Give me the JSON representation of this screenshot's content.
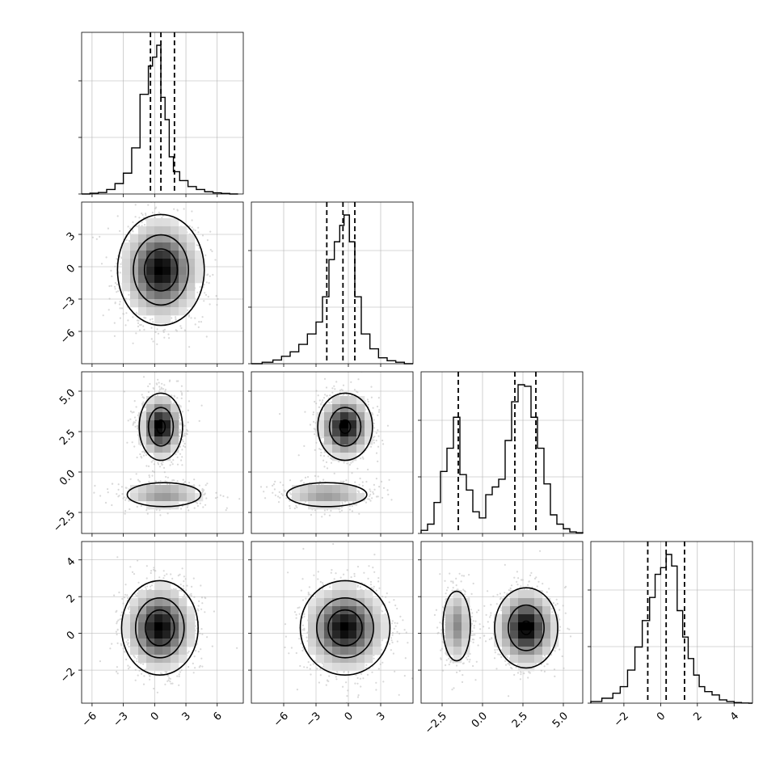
{
  "chart_data": {
    "type": "corner",
    "grid": true,
    "colors": {
      "line": "#000000",
      "grid": "#b0b0b0",
      "points": "#b8b8b8"
    },
    "variables": [
      {
        "range": [
          -7,
          8.5
        ],
        "ticks": [
          -6,
          -3,
          0,
          3,
          6
        ],
        "tick_labels": [
          "−6",
          "−3",
          "0",
          "3",
          "6"
        ],
        "quantiles": [
          -0.4,
          0.6,
          1.9
        ],
        "hist_x": [
          -7,
          -6.2,
          -5.4,
          -4.6,
          -3.8,
          -3,
          -2.2,
          -1.4,
          -0.6,
          -0.2,
          0.2,
          0.6,
          1.0,
          1.4,
          1.8,
          2.4,
          3.2,
          4.0,
          4.8,
          5.6,
          6.4,
          7.2,
          8.0
        ],
        "hist_counts": [
          0,
          0.005,
          0.01,
          0.03,
          0.07,
          0.14,
          0.31,
          0.67,
          0.86,
          0.92,
          1.0,
          0.65,
          0.5,
          0.25,
          0.15,
          0.09,
          0.05,
          0.03,
          0.015,
          0.008,
          0.004,
          0
        ]
      },
      {
        "range": [
          -9,
          6
        ],
        "ticks": [
          -6,
          -3,
          0,
          3
        ],
        "tick_labels": [
          "−6",
          "−3",
          "0",
          "3"
        ],
        "quantiles": [
          -2.0,
          -0.5,
          0.6
        ],
        "hist_x": [
          -9,
          -8,
          -7,
          -6.2,
          -5.4,
          -4.6,
          -3.8,
          -3,
          -2.4,
          -1.8,
          -1.3,
          -0.8,
          -0.4,
          0.1,
          0.6,
          1.2,
          2,
          2.8,
          3.6,
          4.4,
          5.2,
          6
        ],
        "hist_counts": [
          0,
          0.01,
          0.025,
          0.05,
          0.08,
          0.13,
          0.2,
          0.28,
          0.45,
          0.7,
          0.82,
          0.93,
          1.0,
          0.82,
          0.45,
          0.2,
          0.1,
          0.04,
          0.02,
          0.01,
          0
        ]
      },
      {
        "range": [
          -3.8,
          6.2
        ],
        "ticks": [
          -2.5,
          0.0,
          2.5,
          5.0
        ],
        "tick_labels": [
          "−2.5",
          "0.0",
          "2.5",
          "5.0"
        ],
        "quantiles": [
          -1.5,
          2.0,
          3.3
        ],
        "hist_x": [
          -3.8,
          -3.4,
          -3.0,
          -2.6,
          -2.2,
          -1.8,
          -1.4,
          -1.0,
          -0.6,
          -0.2,
          0.2,
          0.6,
          1.0,
          1.4,
          1.8,
          2.2,
          2.6,
          3.0,
          3.4,
          3.8,
          4.2,
          4.6,
          5.0,
          5.4,
          5.8,
          6.2
        ],
        "hist_counts": [
          0.02,
          0.06,
          0.2,
          0.4,
          0.55,
          0.75,
          0.38,
          0.28,
          0.14,
          0.1,
          0.25,
          0.3,
          0.35,
          0.6,
          0.85,
          0.96,
          0.95,
          0.75,
          0.55,
          0.32,
          0.12,
          0.06,
          0.03,
          0.01,
          0.005
        ]
      },
      {
        "range": [
          -3.8,
          5
        ],
        "ticks": [
          -2,
          0,
          2,
          4
        ],
        "tick_labels": [
          "−2",
          "0",
          "2",
          "4"
        ],
        "quantiles": [
          -0.7,
          0.3,
          1.3
        ],
        "hist_x": [
          -3.8,
          -3.2,
          -2.6,
          -2.2,
          -1.8,
          -1.4,
          -1,
          -0.6,
          -0.3,
          0,
          0.3,
          0.6,
          0.9,
          1.2,
          1.5,
          1.8,
          2.1,
          2.4,
          2.8,
          3.2,
          3.6,
          4.0,
          4.4,
          4.8,
          5
        ],
        "hist_counts": [
          0.01,
          0.03,
          0.06,
          0.1,
          0.2,
          0.34,
          0.5,
          0.64,
          0.78,
          0.82,
          0.9,
          0.83,
          0.56,
          0.4,
          0.27,
          0.17,
          0.1,
          0.07,
          0.05,
          0.02,
          0.01,
          0.004,
          0.001,
          0
        ]
      }
    ],
    "pairs": [
      {
        "x": 0,
        "y": 1,
        "modes": [
          {
            "cx": 0.6,
            "cy": -0.3,
            "sx": 1.7,
            "sy": 2.1,
            "w": 1
          }
        ],
        "levels": [
          0.05,
          0.3,
          0.65
        ]
      },
      {
        "x": 0,
        "y": 2,
        "modes": [
          {
            "cx": 0.6,
            "cy": 2.8,
            "sx": 0.9,
            "sy": 0.9,
            "w": 0.72
          },
          {
            "cx": 0.9,
            "cy": -1.4,
            "sx": 1.9,
            "sy": 0.4,
            "w": 0.28
          }
        ],
        "levels": [
          0.05,
          0.3,
          0.65
        ]
      },
      {
        "x": 1,
        "y": 2,
        "modes": [
          {
            "cx": -0.3,
            "cy": 2.8,
            "sx": 1.1,
            "sy": 0.9,
            "w": 0.72
          },
          {
            "cx": -2.0,
            "cy": -1.4,
            "sx": 2.0,
            "sy": 0.4,
            "w": 0.28
          }
        ],
        "levels": [
          0.05,
          0.3,
          0.65
        ]
      },
      {
        "x": 0,
        "y": 3,
        "modes": [
          {
            "cx": 0.5,
            "cy": 0.3,
            "sx": 1.5,
            "sy": 1.05,
            "w": 1
          }
        ],
        "levels": [
          0.05,
          0.3,
          0.65
        ]
      },
      {
        "x": 1,
        "y": 3,
        "modes": [
          {
            "cx": -0.3,
            "cy": 0.3,
            "sx": 1.7,
            "sy": 1.05,
            "w": 1
          }
        ],
        "levels": [
          0.05,
          0.3,
          0.65
        ]
      },
      {
        "x": 2,
        "y": 3,
        "modes": [
          {
            "cx": -1.6,
            "cy": 0.4,
            "sx": 0.45,
            "sy": 1.0,
            "w": 0.3
          },
          {
            "cx": 2.7,
            "cy": 0.3,
            "sx": 0.85,
            "sy": 0.95,
            "w": 0.7
          }
        ],
        "levels": [
          0.05,
          0.3,
          0.65
        ]
      }
    ]
  }
}
